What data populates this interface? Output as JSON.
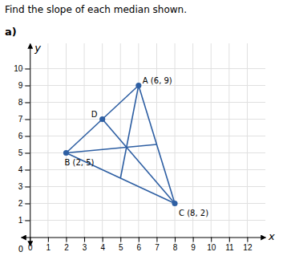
{
  "chart_data": {
    "type": "line",
    "title": "Find the slope of each median shown.",
    "subtitle": "a)",
    "xlabel": "x",
    "ylabel": "y",
    "xlim": [
      -0.5,
      13
    ],
    "ylim": [
      -0.5,
      11.5
    ],
    "xticks": [
      0,
      1,
      2,
      3,
      4,
      5,
      6,
      7,
      8,
      9,
      10,
      11,
      12
    ],
    "yticks": [
      1,
      2,
      3,
      4,
      5,
      6,
      7,
      8,
      9,
      10
    ],
    "grid": true,
    "series": [
      {
        "type": "line",
        "color": "#2e5fa3",
        "x": [
          6,
          2
        ],
        "values": [
          9,
          5
        ]
      },
      {
        "type": "line",
        "color": "#2e5fa3",
        "x": [
          2,
          8
        ],
        "values": [
          5,
          2
        ]
      },
      {
        "type": "line",
        "color": "#2e5fa3",
        "x": [
          6,
          8
        ],
        "values": [
          9,
          2
        ]
      },
      {
        "type": "line",
        "color": "#2e5fa3",
        "x": [
          8,
          4
        ],
        "values": [
          2,
          7
        ]
      },
      {
        "type": "line",
        "color": "#2e5fa3",
        "x": [
          6,
          5
        ],
        "values": [
          9,
          3.5
        ]
      },
      {
        "type": "line",
        "color": "#2e5fa3",
        "x": [
          2,
          7
        ],
        "values": [
          5,
          5.5
        ]
      },
      {
        "type": "scatter",
        "color": "#2e5fa3",
        "marker": "circle",
        "x": [
          6,
          2,
          8,
          4
        ],
        "values": [
          9,
          5,
          2,
          7
        ]
      }
    ],
    "annotations": [
      {
        "text": "A (6, 9)",
        "x": 6,
        "y": 9
      },
      {
        "text": "B (2, 5)",
        "x": 2,
        "y": 5
      },
      {
        "text": "C (8, 2)",
        "x": 8,
        "y": 2
      },
      {
        "text": "D",
        "x": 4,
        "y": 7
      },
      {
        "text": "0",
        "x": -0.5,
        "y": -0.4
      }
    ]
  }
}
